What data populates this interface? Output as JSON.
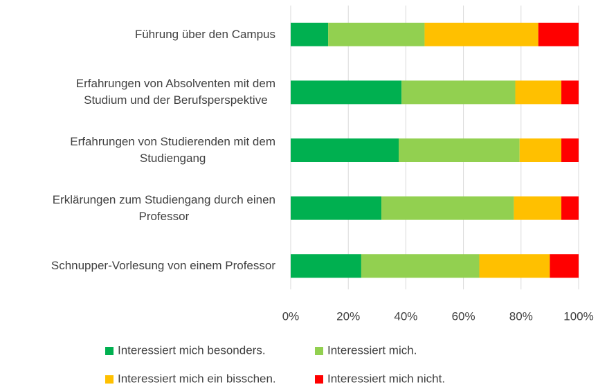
{
  "chart_data": {
    "type": "stacked_barh",
    "categories": [
      "Führung über den Campus",
      "Erfahrungen von Absolventen mit dem\nStudium und der Berufsperspektive",
      "Erfahrungen von Studierenden mit dem\nStudiengang",
      "Erklärungen zum Studiengang durch einen\nProfessor",
      "Schnupper-Vorlesung von einem Professor"
    ],
    "series": [
      {
        "name": "Interessiert mich besonders.",
        "color": "#00b050",
        "values": [
          13,
          38.5,
          37.5,
          31.5,
          24.5
        ]
      },
      {
        "name": "Interessiert mich.",
        "color": "#92d050",
        "values": [
          33.5,
          39.5,
          42,
          46,
          41
        ]
      },
      {
        "name": "Interessiert mich ein bisschen.",
        "color": "#ffc000",
        "values": [
          39.5,
          16,
          14.5,
          16.5,
          24.5
        ]
      },
      {
        "name": "Interessiert mich nicht.",
        "color": "#ff0000",
        "values": [
          14,
          6,
          6,
          6,
          10
        ]
      }
    ],
    "xlim": [
      0,
      100
    ],
    "xticks": [
      {
        "value": 0,
        "label": "0%"
      },
      {
        "value": 20,
        "label": "20%"
      },
      {
        "value": 40,
        "label": "40%"
      },
      {
        "value": 60,
        "label": "60%"
      },
      {
        "value": 80,
        "label": "80%"
      },
      {
        "value": 100,
        "label": "100%"
      }
    ],
    "grid": true,
    "legend": "bottom"
  }
}
